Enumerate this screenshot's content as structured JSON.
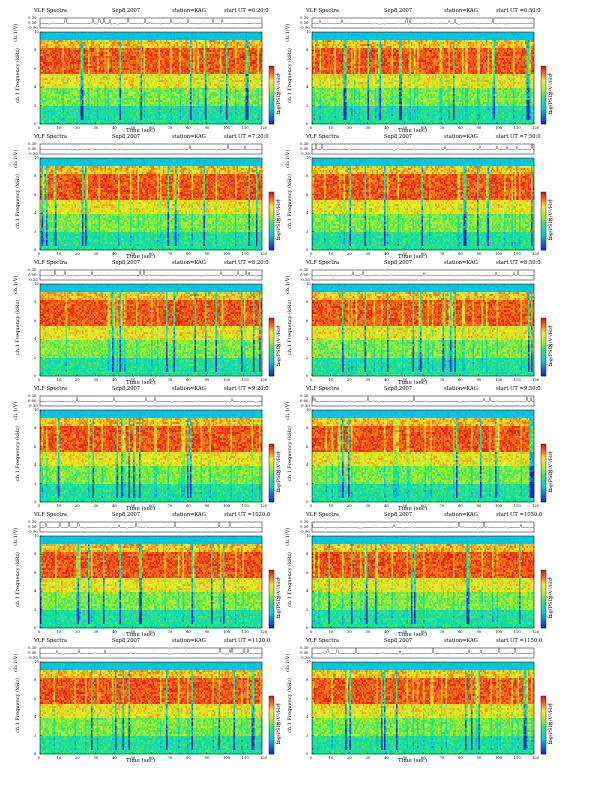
{
  "chart_data": {
    "type": "heatmap",
    "panel_header": {
      "left": "VLF Spectra",
      "date": "Sep8,2007",
      "station": "station=KAG",
      "start_prefix": "start UT ="
    },
    "ylabel_waveform": "ch.1(V)",
    "ylabel_spectrum": "ch.1 Frequency (kHz)",
    "colorbar_label": "log(PSD)(V²/Hz)",
    "xlabel": "Time (sec)",
    "xlim": [
      0,
      120
    ],
    "ylim": [
      0,
      10
    ],
    "waveform_ylim": [
      -0.3,
      0.3
    ],
    "x_ticks": [
      "0",
      "10",
      "20",
      "30",
      "40",
      "50",
      "60",
      "70",
      "80",
      "90",
      "100",
      "110",
      "120"
    ],
    "y_ticks": [
      "0",
      "2",
      "4",
      "6",
      "8",
      "10"
    ],
    "waveform_ticks": [
      "0.30",
      "0.00",
      "-0.30"
    ],
    "colorbar_ticks": [
      "-9",
      "-10",
      "-11"
    ],
    "panels": [
      {
        "start_ut": "6:20:0"
      },
      {
        "start_ut": "6:50:0"
      },
      {
        "start_ut": "7:20:0"
      },
      {
        "start_ut": "7:50:0"
      },
      {
        "start_ut": "8:20:0"
      },
      {
        "start_ut": "8:50:0"
      },
      {
        "start_ut": "9:20:0"
      },
      {
        "start_ut": "9:50:0"
      },
      {
        "start_ut": "1020:0"
      },
      {
        "start_ut": "1050:0"
      },
      {
        "start_ut": "1120:0"
      },
      {
        "start_ut": "1150:0"
      }
    ]
  }
}
